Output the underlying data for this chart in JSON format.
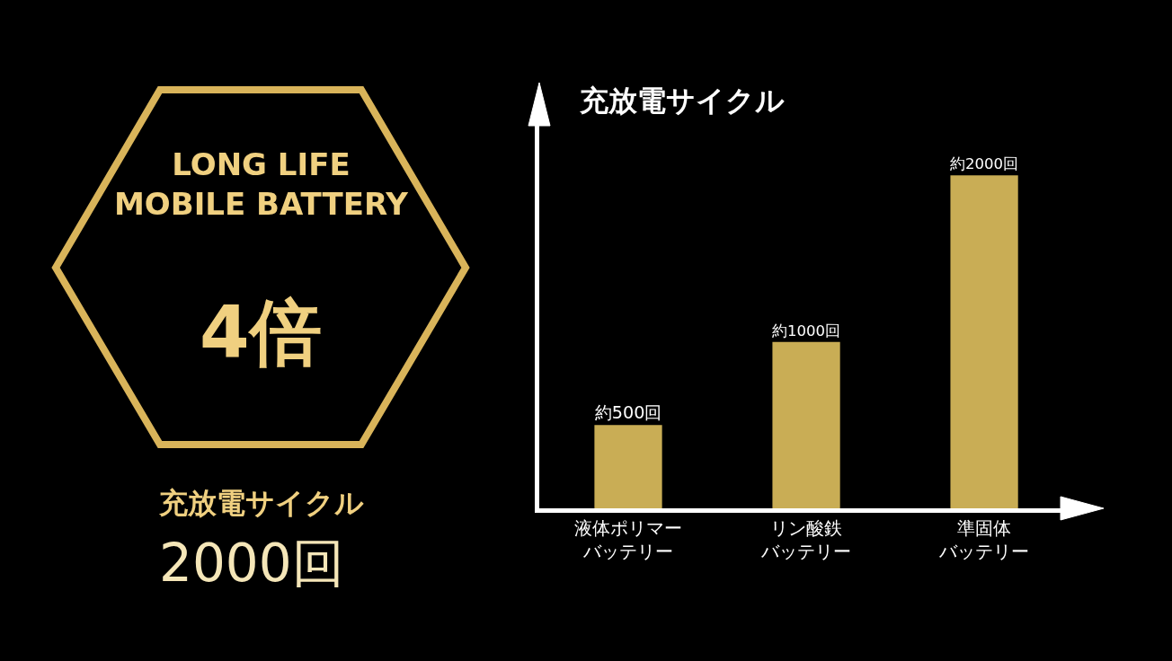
{
  "chart_data": {
    "type": "bar",
    "title": "充放電サイクル",
    "categories": [
      "液体ポリマーバッテリー",
      "リン酸鉄バッテリー",
      "準固体バッテリー"
    ],
    "values": [
      500,
      1000,
      2000
    ],
    "value_labels": [
      "約500回",
      "約1000回",
      "約2000回"
    ],
    "color": "#c9ad55",
    "grid": false,
    "legend": false,
    "annotations": [
      "LONG LIFE\nMOBILE BATTERY",
      "4倍",
      "充放電サイクル",
      "2000回"
    ]
  }
}
